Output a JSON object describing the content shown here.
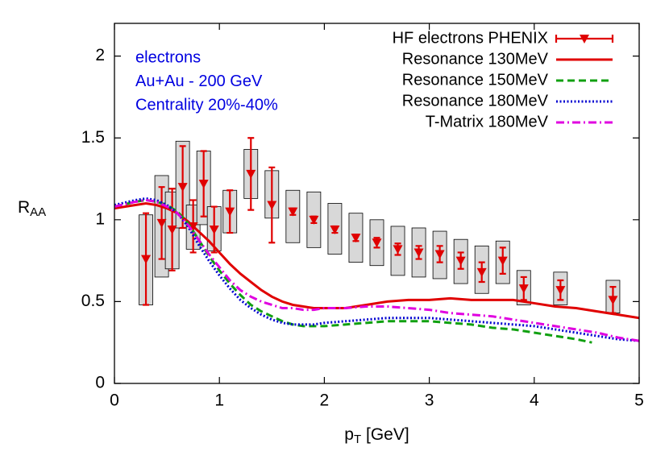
{
  "chart_data": {
    "type": "line",
    "xlabel": [
      "p",
      "T",
      " [GeV]"
    ],
    "ylabel": [
      "R",
      "AA"
    ],
    "annotations": [
      "electrons",
      "Au+Au - 200 GeV",
      "Centrality 20%-40%"
    ],
    "annotation_color": "#0000e0",
    "legend": "top-right",
    "xlim": [
      0,
      5
    ],
    "ylim": [
      0,
      2.2
    ],
    "xticks": [
      0,
      1,
      2,
      3,
      4,
      5
    ],
    "yticks": [
      0,
      0.5,
      1,
      1.5,
      2
    ],
    "series": [
      {
        "name": "HF electrons PHENIX",
        "color": "#e00000",
        "style": "errorbar",
        "x": [
          0.3,
          0.45,
          0.55,
          0.65,
          0.75,
          0.85,
          0.95,
          1.1,
          1.3,
          1.5,
          1.7,
          1.9,
          2.1,
          2.3,
          2.5,
          2.7,
          2.9,
          3.1,
          3.3,
          3.5,
          3.7,
          3.9,
          4.25,
          4.75
        ],
        "values": [
          0.76,
          0.98,
          0.94,
          1.2,
          0.96,
          1.22,
          0.94,
          1.05,
          1.28,
          1.09,
          1.05,
          1.0,
          0.94,
          0.89,
          0.86,
          0.82,
          0.8,
          0.79,
          0.75,
          0.68,
          0.75,
          0.58,
          0.57,
          0.51
        ],
        "yerr": [
          0.28,
          0.22,
          0.25,
          0.25,
          0.16,
          0.2,
          0.14,
          0.13,
          0.22,
          0.23,
          0.02,
          0.02,
          0.02,
          0.02,
          0.03,
          0.035,
          0.04,
          0.05,
          0.05,
          0.06,
          0.08,
          0.07,
          0.06,
          0.08
        ],
        "sys_low": [
          0.48,
          0.65,
          0.7,
          0.95,
          0.82,
          0.97,
          0.81,
          0.92,
          1.13,
          1.01,
          0.86,
          0.83,
          0.79,
          0.74,
          0.72,
          0.66,
          0.65,
          0.64,
          0.61,
          0.55,
          0.61,
          0.48,
          0.48,
          0.43
        ],
        "sys_high": [
          1.03,
          1.27,
          1.17,
          1.48,
          1.09,
          1.42,
          1.08,
          1.18,
          1.43,
          1.3,
          1.18,
          1.17,
          1.1,
          1.04,
          1.0,
          0.96,
          0.95,
          0.93,
          0.88,
          0.84,
          0.87,
          0.69,
          0.68,
          0.63
        ]
      },
      {
        "name": "Resonance 130MeV",
        "color": "#e00000",
        "style": "solid",
        "x": [
          0,
          0.2,
          0.3,
          0.4,
          0.5,
          0.6,
          0.7,
          0.8,
          0.9,
          1.0,
          1.1,
          1.2,
          1.3,
          1.4,
          1.5,
          1.6,
          1.7,
          1.8,
          1.9,
          2.0,
          2.2,
          2.4,
          2.6,
          2.8,
          3.0,
          3.2,
          3.4,
          3.6,
          3.8,
          4.0,
          4.2,
          4.4,
          4.6,
          4.8,
          5.0
        ],
        "values": [
          1.07,
          1.09,
          1.1,
          1.09,
          1.07,
          1.04,
          0.99,
          0.93,
          0.87,
          0.8,
          0.73,
          0.67,
          0.62,
          0.57,
          0.53,
          0.5,
          0.48,
          0.47,
          0.46,
          0.46,
          0.46,
          0.48,
          0.5,
          0.51,
          0.51,
          0.52,
          0.51,
          0.51,
          0.51,
          0.49,
          0.47,
          0.46,
          0.44,
          0.42,
          0.4
        ]
      },
      {
        "name": "Resonance 150MeV",
        "color": "#10a010",
        "style": "dashed",
        "x": [
          0,
          0.2,
          0.3,
          0.4,
          0.5,
          0.6,
          0.7,
          0.8,
          0.9,
          1.0,
          1.1,
          1.2,
          1.3,
          1.4,
          1.5,
          1.6,
          1.7,
          1.8,
          1.9,
          2.0,
          2.2,
          2.4,
          2.6,
          2.8,
          3.0,
          3.2,
          3.4,
          3.6,
          3.8,
          4.0,
          4.2,
          4.4,
          4.55
        ],
        "values": [
          1.08,
          1.11,
          1.12,
          1.11,
          1.09,
          1.05,
          0.98,
          0.88,
          0.78,
          0.69,
          0.61,
          0.54,
          0.48,
          0.44,
          0.41,
          0.38,
          0.36,
          0.35,
          0.35,
          0.35,
          0.36,
          0.37,
          0.38,
          0.38,
          0.38,
          0.37,
          0.36,
          0.34,
          0.33,
          0.31,
          0.29,
          0.27,
          0.25
        ]
      },
      {
        "name": "Resonance 180MeV",
        "color": "#0000d0",
        "style": "dotted",
        "x": [
          0,
          0.2,
          0.3,
          0.4,
          0.5,
          0.6,
          0.7,
          0.8,
          0.9,
          1.0,
          1.1,
          1.2,
          1.3,
          1.4,
          1.5,
          1.6,
          1.7,
          1.8,
          1.9,
          2.0,
          2.2,
          2.4,
          2.6,
          2.8,
          3.0,
          3.2,
          3.4,
          3.6,
          3.8,
          4.0,
          4.2,
          4.4,
          4.6,
          4.8,
          5.0
        ],
        "values": [
          1.09,
          1.12,
          1.13,
          1.12,
          1.09,
          1.04,
          0.96,
          0.85,
          0.75,
          0.66,
          0.58,
          0.51,
          0.46,
          0.42,
          0.39,
          0.37,
          0.36,
          0.36,
          0.36,
          0.37,
          0.38,
          0.39,
          0.4,
          0.4,
          0.4,
          0.39,
          0.38,
          0.37,
          0.36,
          0.35,
          0.33,
          0.31,
          0.29,
          0.27,
          0.26
        ]
      },
      {
        "name": "T-Matrix 180MeV",
        "color": "#e000e0",
        "style": "dashdot",
        "x": [
          0,
          0.2,
          0.3,
          0.4,
          0.5,
          0.6,
          0.7,
          0.8,
          0.9,
          1.0,
          1.1,
          1.2,
          1.3,
          1.4,
          1.5,
          1.6,
          1.7,
          1.8,
          1.9,
          2.0,
          2.2,
          2.4,
          2.6,
          2.8,
          3.0,
          3.2,
          3.4,
          3.6,
          3.8,
          4.0,
          4.2,
          4.4,
          4.6,
          4.8,
          5.0
        ],
        "values": [
          1.08,
          1.11,
          1.12,
          1.11,
          1.08,
          1.04,
          0.97,
          0.88,
          0.79,
          0.71,
          0.63,
          0.57,
          0.53,
          0.5,
          0.48,
          0.46,
          0.46,
          0.45,
          0.45,
          0.46,
          0.46,
          0.47,
          0.47,
          0.46,
          0.45,
          0.43,
          0.42,
          0.41,
          0.39,
          0.37,
          0.35,
          0.33,
          0.31,
          0.28,
          0.26
        ]
      }
    ]
  }
}
